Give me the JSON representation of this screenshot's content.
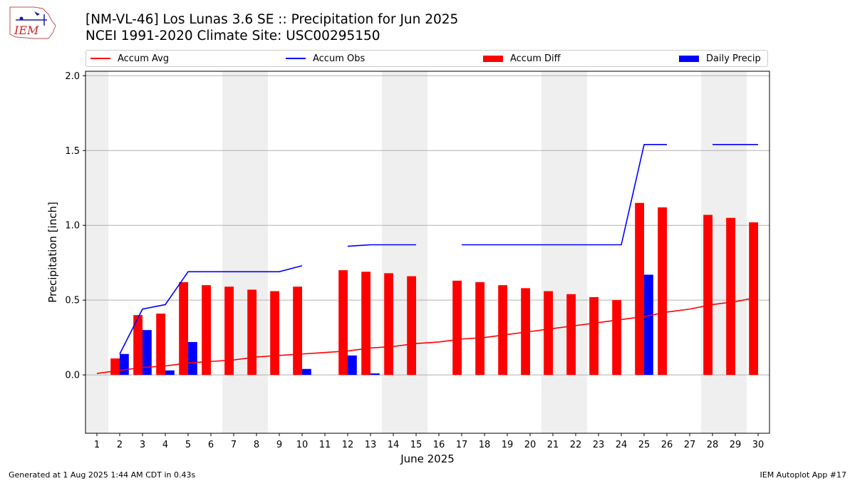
{
  "header": {
    "logo_text": "IEM",
    "title_line1": "[NM-VL-46] Los Lunas 3.6 SE :: Precipitation for Jun 2025",
    "title_line2": "NCEI 1991-2020 Climate Site: USC00295150"
  },
  "legend": [
    {
      "label": "Accum Avg",
      "color": "#ff0000",
      "kind": "line"
    },
    {
      "label": "Accum Obs",
      "color": "#0000ff",
      "kind": "line"
    },
    {
      "label": "Accum Diff",
      "color": "#ff0000",
      "kind": "bar"
    },
    {
      "label": "Daily Precip",
      "color": "#0000ff",
      "kind": "bar"
    }
  ],
  "footer": {
    "left": "Generated at 1 Aug 2025 1:44 AM CDT in 0.43s",
    "right": "IEM Autoplot App #17"
  },
  "chart_data": {
    "type": "bar",
    "xlabel": "June 2025",
    "ylabel": "Precipitation [inch]",
    "xlim": [
      0.5,
      30.5
    ],
    "ylim": [
      -0.39,
      2.03
    ],
    "yticks": [
      0.0,
      0.5,
      1.0,
      1.5,
      2.0
    ],
    "ytick_labels": [
      "0.0",
      "0.5",
      "1.0",
      "1.5",
      "2.0"
    ],
    "days": [
      1,
      2,
      3,
      4,
      5,
      6,
      7,
      8,
      9,
      10,
      11,
      12,
      13,
      14,
      15,
      16,
      17,
      18,
      19,
      20,
      21,
      22,
      23,
      24,
      25,
      26,
      27,
      28,
      29,
      30
    ],
    "grid": "horizontal",
    "weekend_shading": [
      [
        0.5,
        1.5
      ],
      [
        6.5,
        8.5
      ],
      [
        13.5,
        15.5
      ],
      [
        20.5,
        22.5
      ],
      [
        27.5,
        29.5
      ]
    ],
    "series": [
      {
        "name": "Accum Avg",
        "type": "line",
        "color": "#ff0000",
        "values": [
          0.01,
          0.03,
          0.05,
          0.06,
          0.08,
          0.09,
          0.1,
          0.12,
          0.13,
          0.14,
          0.15,
          0.16,
          0.18,
          0.19,
          0.21,
          0.22,
          0.24,
          0.25,
          0.27,
          0.29,
          0.31,
          0.33,
          0.35,
          0.37,
          0.39,
          0.42,
          0.44,
          0.47,
          0.49,
          0.52
        ]
      },
      {
        "name": "Accum Obs",
        "type": "line",
        "color": "#0000ff",
        "values": [
          null,
          0.14,
          0.44,
          0.47,
          0.69,
          0.69,
          0.69,
          0.69,
          0.69,
          0.73,
          null,
          0.86,
          0.87,
          0.87,
          0.87,
          null,
          0.87,
          0.87,
          0.87,
          0.87,
          0.87,
          0.87,
          0.87,
          0.87,
          1.54,
          1.54,
          null,
          1.54,
          1.54,
          1.54
        ]
      },
      {
        "name": "Accum Diff",
        "type": "bar",
        "color": "#ff0000",
        "values": [
          null,
          0.11,
          0.4,
          0.41,
          0.62,
          0.6,
          0.59,
          0.57,
          0.56,
          0.59,
          null,
          0.7,
          0.69,
          0.68,
          0.66,
          null,
          0.63,
          0.62,
          0.6,
          0.58,
          0.56,
          0.54,
          0.52,
          0.5,
          1.15,
          1.12,
          null,
          1.07,
          1.05,
          1.02
        ]
      },
      {
        "name": "Daily Precip",
        "type": "bar",
        "color": "#0000ff",
        "values": [
          null,
          0.14,
          0.3,
          0.03,
          0.22,
          0,
          0,
          0,
          0,
          0.04,
          null,
          0.13,
          0.01,
          0,
          0,
          null,
          0,
          0,
          0,
          0,
          0,
          0,
          0,
          0,
          0.67,
          0,
          null,
          0,
          0,
          0
        ]
      }
    ]
  }
}
